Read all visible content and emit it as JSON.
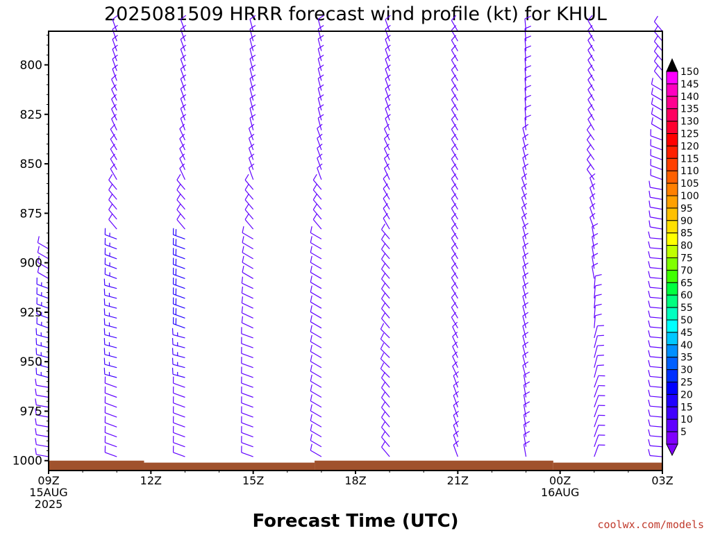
{
  "chart_data": {
    "type": "wind_barbs",
    "title": "2025081509 HRRR forecast wind profile (kt) for KHUL",
    "xlabel": "Forecast Time (UTC)",
    "credit": "coolwx.com/models",
    "x_ticks": [
      {
        "hour": 0,
        "lines": [
          "09Z",
          "15AUG",
          "2025"
        ]
      },
      {
        "hour": 3,
        "lines": [
          "12Z"
        ]
      },
      {
        "hour": 6,
        "lines": [
          "15Z"
        ]
      },
      {
        "hour": 9,
        "lines": [
          "18Z"
        ]
      },
      {
        "hour": 12,
        "lines": [
          "21Z"
        ]
      },
      {
        "hour": 15,
        "lines": [
          "00Z",
          "16AUG"
        ]
      },
      {
        "hour": 18,
        "lines": [
          "03Z"
        ]
      }
    ],
    "xlim": [
      0,
      18
    ],
    "y_ticks": [
      800,
      825,
      850,
      875,
      900,
      925,
      950,
      975,
      1000
    ],
    "ylim": [
      1005,
      783
    ],
    "surface_pressure": [
      {
        "from_hour": 0,
        "to_hour": 2.8,
        "p": 1000
      },
      {
        "from_hour": 2.8,
        "to_hour": 7.8,
        "p": 1001
      },
      {
        "from_hour": 7.8,
        "to_hour": 14.8,
        "p": 1000
      },
      {
        "from_hour": 14.8,
        "to_hour": 18,
        "p": 1001
      }
    ],
    "surface_color": "#a0522d",
    "profiles": [
      {
        "hour": 0,
        "sfc": 1000,
        "top": 893,
        "layers": [
          {
            "p": 900,
            "dir": 300,
            "spd": 10
          },
          {
            "p": 925,
            "dir": 290,
            "spd": 15
          },
          {
            "p": 950,
            "dir": 285,
            "spd": 15
          },
          {
            "p": 975,
            "dir": 280,
            "spd": 10
          }
        ]
      },
      {
        "hour": 2,
        "sfc": 1000,
        "top": 783,
        "layers": [
          {
            "p": 800,
            "dir": 340,
            "spd": 10
          },
          {
            "p": 825,
            "dir": 335,
            "spd": 10
          },
          {
            "p": 850,
            "dir": 330,
            "spd": 10
          },
          {
            "p": 875,
            "dir": 320,
            "spd": 10
          },
          {
            "p": 900,
            "dir": 290,
            "spd": 15
          },
          {
            "p": 925,
            "dir": 285,
            "spd": 15
          },
          {
            "p": 950,
            "dir": 285,
            "spd": 15
          },
          {
            "p": 975,
            "dir": 290,
            "spd": 10
          }
        ]
      },
      {
        "hour": 4,
        "sfc": 1000,
        "top": 783,
        "layers": [
          {
            "p": 800,
            "dir": 340,
            "spd": 10
          },
          {
            "p": 825,
            "dir": 340,
            "spd": 10
          },
          {
            "p": 850,
            "dir": 335,
            "spd": 10
          },
          {
            "p": 875,
            "dir": 320,
            "spd": 10
          },
          {
            "p": 900,
            "dir": 290,
            "spd": 20
          },
          {
            "p": 925,
            "dir": 290,
            "spd": 20
          },
          {
            "p": 950,
            "dir": 285,
            "spd": 15
          },
          {
            "p": 975,
            "dir": 290,
            "spd": 10
          }
        ]
      },
      {
        "hour": 6,
        "sfc": 1000,
        "top": 783,
        "layers": [
          {
            "p": 800,
            "dir": 345,
            "spd": 10
          },
          {
            "p": 825,
            "dir": 345,
            "spd": 10
          },
          {
            "p": 850,
            "dir": 340,
            "spd": 10
          },
          {
            "p": 875,
            "dir": 320,
            "spd": 10
          },
          {
            "p": 900,
            "dir": 300,
            "spd": 10
          },
          {
            "p": 925,
            "dir": 295,
            "spd": 10
          },
          {
            "p": 950,
            "dir": 290,
            "spd": 10
          },
          {
            "p": 975,
            "dir": 290,
            "spd": 10
          }
        ]
      },
      {
        "hour": 8,
        "sfc": 1000,
        "top": 783,
        "layers": [
          {
            "p": 800,
            "dir": 345,
            "spd": 10
          },
          {
            "p": 825,
            "dir": 345,
            "spd": 10
          },
          {
            "p": 850,
            "dir": 340,
            "spd": 10
          },
          {
            "p": 875,
            "dir": 320,
            "spd": 10
          },
          {
            "p": 900,
            "dir": 300,
            "spd": 10
          },
          {
            "p": 925,
            "dir": 300,
            "spd": 10
          },
          {
            "p": 950,
            "dir": 300,
            "spd": 10
          },
          {
            "p": 975,
            "dir": 300,
            "spd": 10
          }
        ]
      },
      {
        "hour": 10,
        "sfc": 1000,
        "top": 783,
        "layers": [
          {
            "p": 800,
            "dir": 340,
            "spd": 10
          },
          {
            "p": 825,
            "dir": 340,
            "spd": 10
          },
          {
            "p": 850,
            "dir": 335,
            "spd": 10
          },
          {
            "p": 875,
            "dir": 330,
            "spd": 10
          },
          {
            "p": 900,
            "dir": 320,
            "spd": 10
          },
          {
            "p": 925,
            "dir": 320,
            "spd": 10
          },
          {
            "p": 950,
            "dir": 315,
            "spd": 10
          },
          {
            "p": 975,
            "dir": 320,
            "spd": 10
          }
        ]
      },
      {
        "hour": 12,
        "sfc": 1000,
        "top": 783,
        "layers": [
          {
            "p": 800,
            "dir": 330,
            "spd": 10
          },
          {
            "p": 825,
            "dir": 330,
            "spd": 10
          },
          {
            "p": 850,
            "dir": 330,
            "spd": 10
          },
          {
            "p": 875,
            "dir": 330,
            "spd": 10
          },
          {
            "p": 900,
            "dir": 330,
            "spd": 10
          },
          {
            "p": 925,
            "dir": 330,
            "spd": 10
          },
          {
            "p": 950,
            "dir": 335,
            "spd": 10
          },
          {
            "p": 975,
            "dir": 340,
            "spd": 10
          }
        ]
      },
      {
        "hour": 14,
        "sfc": 1000,
        "top": 783,
        "layers": [
          {
            "p": 800,
            "dir": 355,
            "spd": 10
          },
          {
            "p": 825,
            "dir": 355,
            "spd": 10
          },
          {
            "p": 850,
            "dir": 345,
            "spd": 10
          },
          {
            "p": 875,
            "dir": 340,
            "spd": 10
          },
          {
            "p": 900,
            "dir": 345,
            "spd": 10
          },
          {
            "p": 925,
            "dir": 345,
            "spd": 10
          },
          {
            "p": 950,
            "dir": 345,
            "spd": 10
          },
          {
            "p": 975,
            "dir": 350,
            "spd": 10
          }
        ]
      },
      {
        "hour": 16,
        "sfc": 1000,
        "top": 783,
        "layers": [
          {
            "p": 800,
            "dir": 330,
            "spd": 10
          },
          {
            "p": 825,
            "dir": 330,
            "spd": 10
          },
          {
            "p": 850,
            "dir": 325,
            "spd": 10
          },
          {
            "p": 875,
            "dir": 340,
            "spd": 10
          },
          {
            "p": 900,
            "dir": 350,
            "spd": 10
          },
          {
            "p": 925,
            "dir": 5,
            "spd": 10
          },
          {
            "p": 950,
            "dir": 15,
            "spd": 10
          },
          {
            "p": 975,
            "dir": 20,
            "spd": 10
          }
        ]
      },
      {
        "hour": 18,
        "sfc": 1000,
        "top": 783,
        "layers": [
          {
            "p": 800,
            "dir": 320,
            "spd": 10
          },
          {
            "p": 825,
            "dir": 300,
            "spd": 10
          },
          {
            "p": 850,
            "dir": 290,
            "spd": 10
          },
          {
            "p": 875,
            "dir": 280,
            "spd": 10
          },
          {
            "p": 900,
            "dir": 275,
            "spd": 10
          }
        ]
      }
    ],
    "colorbar": {
      "labels": [
        150,
        145,
        140,
        135,
        130,
        125,
        120,
        115,
        110,
        105,
        100,
        95,
        90,
        85,
        80,
        75,
        70,
        65,
        60,
        55,
        50,
        45,
        40,
        35,
        30,
        25,
        20,
        15,
        10,
        5
      ],
      "top_color": "#000000",
      "colors": [
        "#ff00ff",
        "#ff00c0",
        "#ff0090",
        "#ff0060",
        "#ff0030",
        "#ff0000",
        "#ff2000",
        "#ff4000",
        "#ff6000",
        "#ff8000",
        "#ffa000",
        "#ffc000",
        "#ffe000",
        "#ffff00",
        "#c0ff00",
        "#80ff00",
        "#40ff00",
        "#00ff40",
        "#00ff80",
        "#00ffc0",
        "#00ffff",
        "#00c8ff",
        "#0090ff",
        "#0060ff",
        "#0030ff",
        "#0000ff",
        "#2000ff",
        "#4000ff",
        "#6000ff",
        "#8000ff"
      ]
    }
  }
}
